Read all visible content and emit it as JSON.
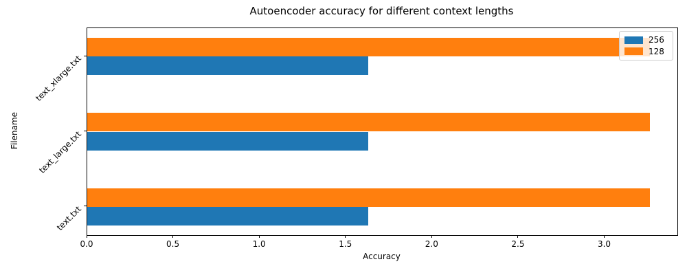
{
  "chart_data": {
    "type": "bar",
    "orientation": "horizontal",
    "title": "Autoencoder accuracy for different context lengths",
    "xlabel": "Accuracy",
    "ylabel": "Filename",
    "categories_top_to_bottom": [
      "text_xlarge.txt",
      "text_large.txt",
      "text.txt"
    ],
    "series": [
      {
        "name": "256",
        "color": "#1f77b4",
        "values": [
          1.63,
          1.63,
          1.63
        ]
      },
      {
        "name": "128",
        "color": "#ff7f0e",
        "values": [
          3.26,
          3.26,
          3.26
        ]
      }
    ],
    "xlim": [
      0,
      3.42
    ],
    "ylim": [
      -0.375,
      2.375
    ],
    "bar_thickness": 0.25,
    "xticks": [
      0.0,
      0.5,
      1.0,
      1.5,
      2.0,
      2.5,
      3.0
    ],
    "xtick_labels": [
      "0.0",
      "0.5",
      "1.0",
      "1.5",
      "2.0",
      "2.5",
      "3.0"
    ],
    "legend": {
      "position": "upper-right",
      "entries": [
        {
          "label": "256",
          "color": "#1f77b4"
        },
        {
          "label": "128",
          "color": "#ff7f0e"
        }
      ]
    },
    "grid": false,
    "background": "#ffffff"
  }
}
